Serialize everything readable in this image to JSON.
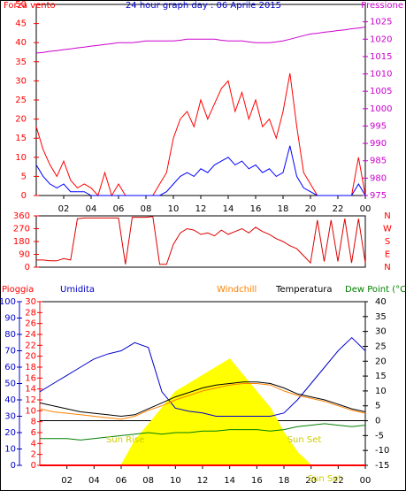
{
  "chart_data": [
    {
      "type": "line",
      "title": "24 hour graph day : 06 Aprile 2015",
      "ylabel": "Forza vento",
      "y2label": "Pressione",
      "x": [
        0,
        0.5,
        1,
        1.5,
        2,
        2.5,
        3,
        3.5,
        4,
        4.5,
        5,
        5.5,
        6,
        6.5,
        7,
        7.5,
        8,
        8.5,
        9,
        9.5,
        10,
        10.5,
        11,
        11.5,
        12,
        12.5,
        13,
        13.5,
        14,
        14.5,
        15,
        15.5,
        16,
        16.5,
        17,
        17.5,
        18,
        18.5,
        19,
        19.5,
        20,
        20.5,
        21,
        21.5,
        22,
        22.5,
        23,
        23.5,
        24
      ],
      "xlim": [
        0,
        24
      ],
      "xticks": [
        {
          "value": 2,
          "label": "02"
        },
        {
          "value": 4,
          "label": "04"
        },
        {
          "value": 6,
          "label": "06"
        },
        {
          "value": 8,
          "label": "08"
        },
        10,
        12,
        14,
        16,
        18,
        20,
        22,
        {
          "value": 24,
          "label": "00"
        }
      ],
      "ylim": [
        0,
        50
      ],
      "yticks": [
        0,
        5,
        10,
        15,
        20,
        25,
        30,
        35,
        40,
        45,
        50
      ],
      "y2lim": [
        975,
        1030
      ],
      "y2ticks": [
        975,
        980,
        985,
        990,
        995,
        1000,
        1005,
        1010,
        1015,
        1020,
        1025
      ],
      "series": [
        {
          "color": "#ff0000",
          "values": [
            18,
            12,
            8,
            5,
            9,
            4,
            2,
            3,
            2,
            0,
            6,
            0,
            3,
            0,
            0,
            0,
            0,
            0,
            3,
            6,
            15,
            20,
            22,
            18,
            25,
            20,
            24,
            28,
            30,
            22,
            27,
            20,
            25,
            18,
            20,
            15,
            22,
            32,
            18,
            6,
            3,
            0,
            0,
            0,
            0,
            0,
            0,
            10,
            0
          ]
        },
        {
          "color": "#0000ff",
          "values": [
            8,
            5,
            3,
            2,
            3,
            1,
            1,
            1,
            0,
            0,
            0,
            0,
            0,
            0,
            0,
            0,
            0,
            0,
            0,
            1,
            3,
            5,
            6,
            5,
            7,
            6,
            8,
            9,
            10,
            8,
            9,
            7,
            8,
            6,
            7,
            5,
            6,
            13,
            5,
            2,
            1,
            0,
            0,
            0,
            0,
            0,
            0,
            3,
            0
          ]
        },
        {
          "axis": "y2",
          "color": "#cc00cc",
          "values": [
            1016,
            1016.2,
            1016.5,
            1016.7,
            1017,
            1017.2,
            1017.5,
            1017.7,
            1018,
            1018.2,
            1018.5,
            1018.7,
            1019,
            1019,
            1019,
            1019.2,
            1019.5,
            1019.5,
            1019.5,
            1019.5,
            1019.5,
            1019.7,
            1020,
            1020,
            1020,
            1020,
            1020,
            1019.7,
            1019.5,
            1019.5,
            1019.5,
            1019.2,
            1019,
            1019,
            1019,
            1019.2,
            1019.5,
            1020,
            1020.5,
            1021,
            1021.5,
            1021.7,
            1022,
            1022.2,
            1022.5,
            1022.7,
            1023,
            1023.2,
            1023.5
          ]
        }
      ]
    },
    {
      "type": "line",
      "x": [
        0,
        0.5,
        1,
        1.5,
        2,
        2.5,
        3,
        3.5,
        4,
        4.5,
        5,
        5.5,
        6,
        6.5,
        7,
        7.5,
        8,
        8.5,
        9,
        9.5,
        10,
        10.5,
        11,
        11.5,
        12,
        12.5,
        13,
        13.5,
        14,
        14.5,
        15,
        15.5,
        16,
        16.5,
        17,
        17.5,
        18,
        18.5,
        19,
        19.5,
        20,
        20.5,
        21,
        21.5,
        22,
        22.5,
        23,
        23.5,
        24
      ],
      "xlim": [
        0,
        24
      ],
      "ylim": [
        0,
        360
      ],
      "yticks": [
        0,
        90,
        180,
        270,
        360
      ],
      "compass": [
        "N",
        "E",
        "S",
        "W",
        "N"
      ],
      "series": [
        {
          "color": "#dd0000",
          "values": [
            50,
            50,
            45,
            45,
            60,
            50,
            340,
            345,
            345,
            345,
            345,
            345,
            345,
            20,
            350,
            350,
            350,
            355,
            20,
            20,
            160,
            240,
            270,
            260,
            230,
            240,
            220,
            260,
            230,
            250,
            270,
            240,
            280,
            250,
            230,
            200,
            180,
            150,
            130,
            80,
            30,
            330,
            40,
            330,
            40,
            340,
            30,
            340,
            30
          ]
        }
      ]
    },
    {
      "type": "line",
      "x": [
        0,
        1,
        2,
        3,
        4,
        5,
        6,
        7,
        8,
        9,
        10,
        11,
        12,
        13,
        14,
        15,
        16,
        17,
        18,
        19,
        20,
        21,
        22,
        23,
        24
      ],
      "xlim": [
        0,
        24
      ],
      "xticks": [
        {
          "value": 2,
          "label": "02"
        },
        {
          "value": 4,
          "label": "04"
        },
        {
          "value": 6,
          "label": "06"
        },
        {
          "value": 8,
          "label": "08"
        },
        10,
        12,
        14,
        16,
        18,
        20,
        22,
        {
          "value": 24,
          "label": "00"
        }
      ],
      "ylim": [
        0,
        100
      ],
      "yticks": [
        0,
        10,
        20,
        30,
        40,
        50,
        60,
        70,
        80,
        90,
        100
      ],
      "y3lim": [
        0,
        30
      ],
      "y3ticks": [
        0,
        2,
        4,
        6,
        8,
        10,
        12,
        14,
        16,
        18,
        20,
        22,
        24,
        26,
        28,
        30
      ],
      "y2lim": [
        -15,
        40
      ],
      "y2ticks": [
        -15,
        -10,
        -5,
        0,
        5,
        10,
        15,
        20,
        25,
        30,
        35,
        40
      ],
      "annotations": [
        "Sun Rise",
        "Sun Set",
        "Sun Set"
      ],
      "series": [
        {
          "color": "#ffff00",
          "fill": true,
          "values": [
            0,
            0,
            0,
            0,
            0,
            0,
            0,
            15,
            25,
            35,
            45,
            50,
            55,
            60,
            65,
            55,
            45,
            35,
            20,
            8,
            0,
            0,
            0,
            0,
            0
          ]
        },
        {
          "name": "Pioggia",
          "axis": "y3",
          "color": "#ff0000",
          "values": [
            0,
            0,
            0,
            0,
            0,
            0,
            0,
            0,
            0,
            0,
            0,
            0,
            0,
            0,
            0,
            0,
            0,
            0,
            0,
            0,
            0,
            0,
            0,
            0,
            0
          ]
        },
        {
          "name": "Umidita",
          "color": "#0000cc",
          "values": [
            45,
            50,
            55,
            60,
            65,
            68,
            70,
            75,
            72,
            45,
            35,
            33,
            32,
            30,
            30,
            30,
            30,
            30,
            32,
            40,
            50,
            60,
            70,
            78,
            70
          ]
        },
        {
          "name": "Windchill",
          "axis": "y2",
          "color": "#ff8000",
          "values": [
            4,
            3,
            2.5,
            2,
            1.5,
            1,
            0.5,
            1.5,
            3.5,
            5,
            7,
            8.5,
            10,
            11,
            12,
            12.5,
            12.5,
            12,
            10,
            8.5,
            7.5,
            6.5,
            5,
            3.5,
            2.5
          ]
        },
        {
          "name": "Temperatura",
          "axis": "y2",
          "color": "#000000",
          "values": [
            6,
            5,
            4,
            3,
            2.5,
            2,
            1.5,
            2,
            4,
            6,
            8,
            9.5,
            11,
            12,
            12.5,
            13,
            13,
            12.5,
            11,
            9,
            8,
            7,
            5.5,
            4,
            3
          ]
        },
        {
          "name": "Dew Point (°C",
          "axis": "y2",
          "color": "#008000",
          "values": [
            -6,
            -6,
            -6,
            -6.5,
            -6,
            -5.5,
            -5,
            -4.5,
            -4,
            -4.5,
            -4,
            -4,
            -3.5,
            -3.5,
            -3,
            -3,
            -3,
            -3.5,
            -3,
            -2,
            -1.5,
            -1,
            -1.5,
            -2,
            -1.5
          ]
        }
      ]
    }
  ]
}
